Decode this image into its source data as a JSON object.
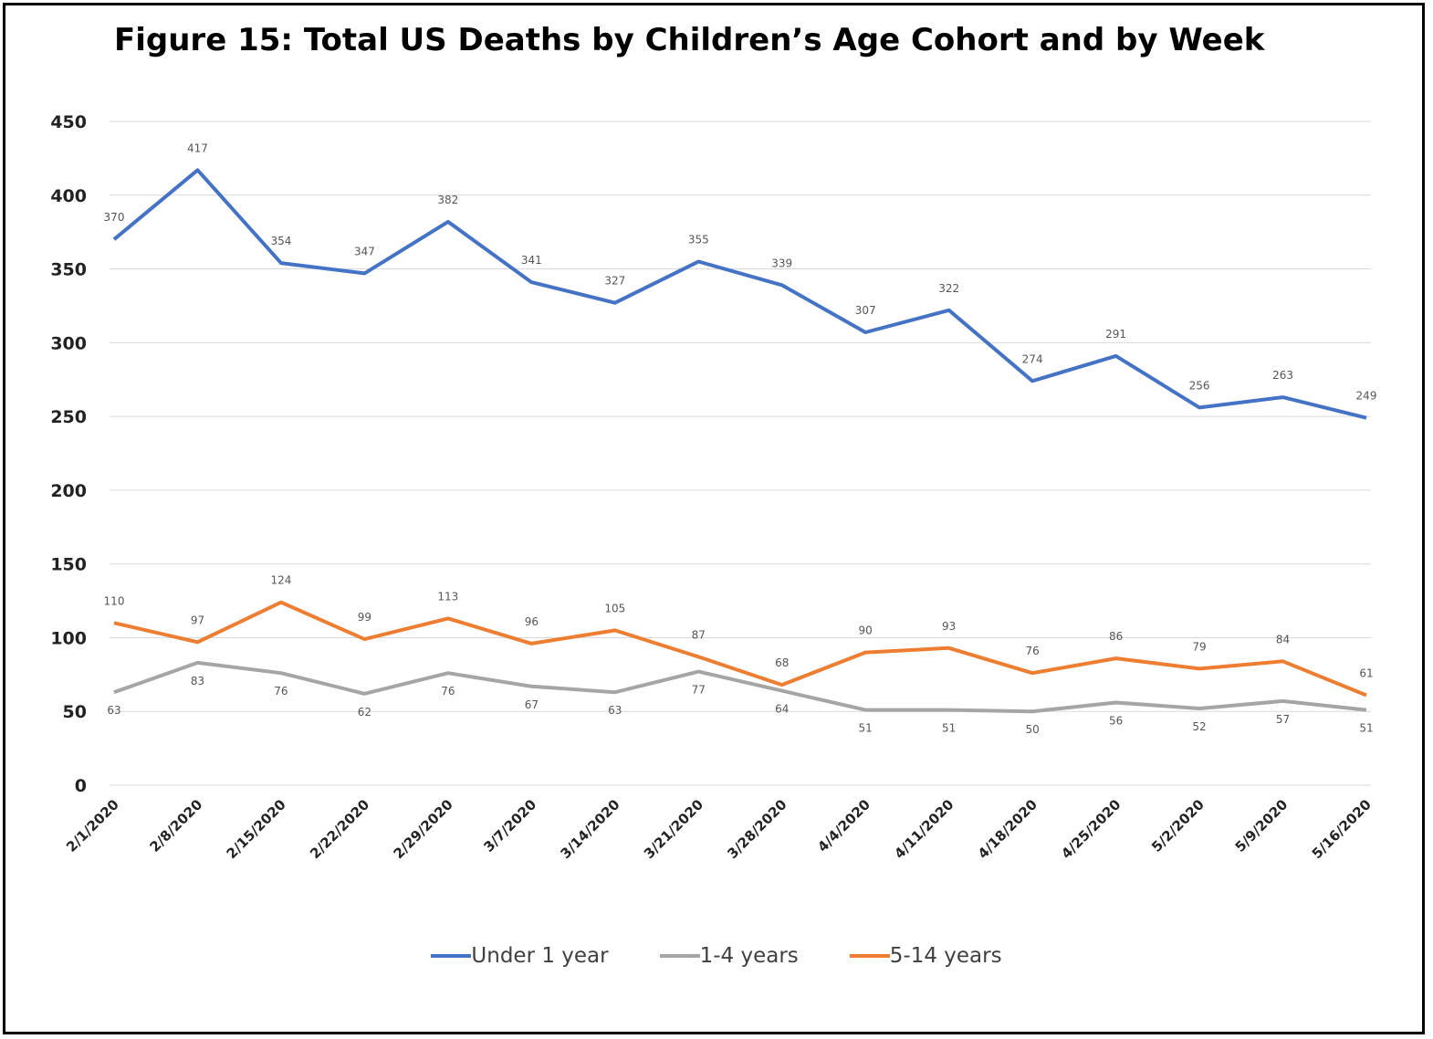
{
  "chart_data": {
    "type": "line",
    "title": "Figure 15: Total US Deaths by Children’s Age Cohort and by Week",
    "xlabel": "",
    "ylabel": "",
    "ylim": [
      0,
      450
    ],
    "yticks": [
      "0",
      "50",
      "100",
      "150",
      "200",
      "250",
      "300",
      "350",
      "400",
      "450"
    ],
    "grid": true,
    "legend_position": "bottom",
    "x": [
      "2/1/2020",
      "2/8/2020",
      "2/15/2020",
      "2/22/2020",
      "2/29/2020",
      "3/7/2020",
      "3/14/2020",
      "3/21/2020",
      "3/28/2020",
      "4/4/2020",
      "4/11/2020",
      "4/18/2020",
      "4/25/2020",
      "5/2/2020",
      "5/9/2020",
      "5/16/2020"
    ],
    "series": [
      {
        "name": "Under 1 year",
        "color": "#4472C4",
        "values": [
          370,
          417,
          354,
          347,
          382,
          341,
          327,
          355,
          339,
          307,
          322,
          274,
          291,
          256,
          263,
          249
        ]
      },
      {
        "name": "1-4 years",
        "color": "#A5A5A5",
        "values": [
          63,
          83,
          76,
          62,
          76,
          67,
          63,
          77,
          64,
          51,
          51,
          50,
          56,
          52,
          57,
          51
        ]
      },
      {
        "name": "5-14 years",
        "color": "#ED7D31",
        "values": [
          110,
          97,
          124,
          99,
          113,
          96,
          105,
          87,
          68,
          90,
          93,
          76,
          86,
          79,
          84,
          61
        ]
      }
    ]
  }
}
